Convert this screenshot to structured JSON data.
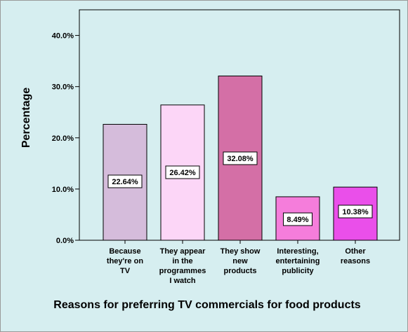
{
  "chart_data": {
    "type": "bar",
    "categories": [
      [
        "Because",
        "they're on",
        "TV"
      ],
      [
        "They appear",
        "in the",
        "programmes",
        "I watch"
      ],
      [
        "They show",
        "new",
        "products"
      ],
      [
        "Interesting,",
        "entertaining",
        "publicity"
      ],
      [
        "Other",
        "reasons"
      ]
    ],
    "values": [
      22.64,
      26.42,
      32.08,
      8.49,
      10.38
    ],
    "data_labels": [
      "22.64%",
      "26.42%",
      "32.08%",
      "8.49%",
      "10.38%"
    ],
    "colors": [
      "#d5bcdb",
      "#fcd6f7",
      "#d46fa6",
      "#f57ddb",
      "#ea4fea"
    ],
    "ylabel": "Percentage",
    "xlabel": "Reasons for preferring TV commercials for food products",
    "ylim": [
      0,
      45
    ],
    "yticks": [
      0,
      10,
      20,
      30,
      40
    ],
    "ytick_labels": [
      "0.0%",
      "10.0%",
      "20.0%",
      "30.0%",
      "40.0%"
    ],
    "grid": false,
    "background": "#d6eef0"
  }
}
